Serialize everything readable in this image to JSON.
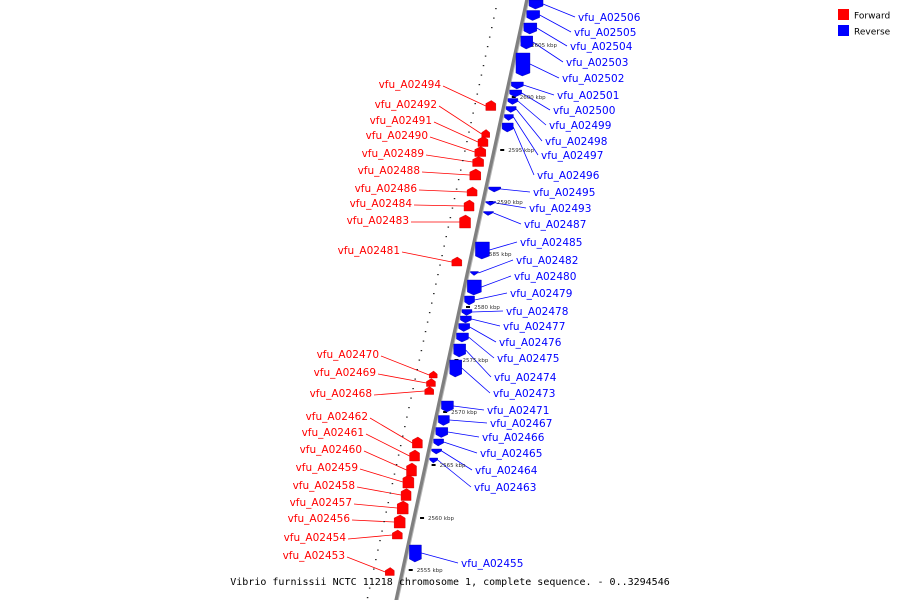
{
  "colors": {
    "forward": "#ff0000",
    "reverse": "#0000ff",
    "axis": "#808080"
  },
  "legend": [
    {
      "label": "Forward",
      "color": "#ff0000"
    },
    {
      "label": "Reverse",
      "color": "#0000ff"
    }
  ],
  "caption": "Vibrio furnissii NCTC 11218 chromosome 1, complete sequence. - 0..3294546",
  "ticks": [
    "2605 kbp",
    "2600 kbp",
    "2595 kbp",
    "2590 kbp",
    "2585 kbp",
    "2580 kbp",
    "2575 kbp",
    "2570 kbp",
    "2565 kbp",
    "2560 kbp",
    "2555 kbp"
  ],
  "forward_genes": [
    "vfu_A02494",
    "vfu_A02492",
    "vfu_A02491",
    "vfu_A02490",
    "vfu_A02489",
    "vfu_A02488",
    "vfu_A02486",
    "vfu_A02484",
    "vfu_A02483",
    "vfu_A02481",
    "vfu_A02470",
    "vfu_A02469",
    "vfu_A02468",
    "vfu_A02462",
    "vfu_A02461",
    "vfu_A02460",
    "vfu_A02459",
    "vfu_A02458",
    "vfu_A02457",
    "vfu_A02456",
    "vfu_A02454",
    "vfu_A02453"
  ],
  "reverse_genes": [
    "vfu_A02506",
    "vfu_A02505",
    "vfu_A02504",
    "vfu_A02503",
    "vfu_A02502",
    "vfu_A02501",
    "vfu_A02500",
    "vfu_A02499",
    "vfu_A02498",
    "vfu_A02497",
    "vfu_A02496",
    "vfu_A02495",
    "vfu_A02493",
    "vfu_A02487",
    "vfu_A02485",
    "vfu_A02482",
    "vfu_A02480",
    "vfu_A02479",
    "vfu_A02478",
    "vfu_A02477",
    "vfu_A02476",
    "vfu_A02475",
    "vfu_A02474",
    "vfu_A02473",
    "vfu_A02471",
    "vfu_A02467",
    "vfu_A02466",
    "vfu_A02465",
    "vfu_A02464",
    "vfu_A02463",
    "vfu_A02455"
  ]
}
